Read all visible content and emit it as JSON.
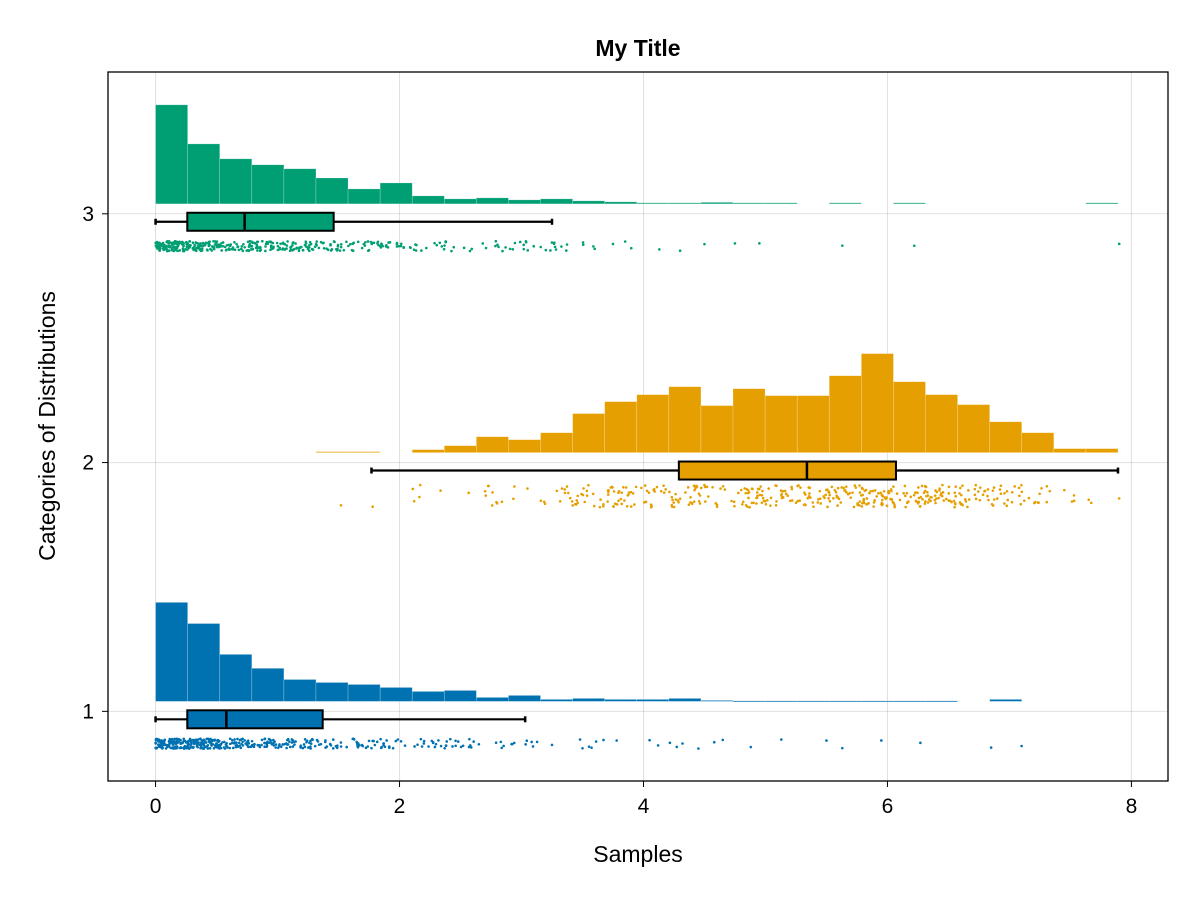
{
  "chart_data": {
    "type": "raincloud",
    "title": "My Title",
    "xlabel": "Samples",
    "ylabel": "Categories of Distributions",
    "xlim": [
      -0.39,
      8.3
    ],
    "ylim": [
      0.72,
      3.57
    ],
    "xticks": [
      0,
      2,
      4,
      6,
      8
    ],
    "xtick_labels": [
      "0",
      "2",
      "4",
      "6",
      "8"
    ],
    "yticks": [
      1,
      2,
      3
    ],
    "ytick_labels": [
      "1",
      "2",
      "3"
    ],
    "grid": true,
    "bin_width": 0.263,
    "series": [
      {
        "name": "1",
        "category": 1,
        "color": "#0072b2",
        "hist_baseline": 1.04,
        "hist_heights": [
          0.398,
          0.313,
          0.189,
          0.133,
          0.088,
          0.076,
          0.068,
          0.056,
          0.04,
          0.044,
          0.016,
          0.024,
          0.008,
          0.012,
          0.008,
          0.008,
          0.012,
          0.004,
          0.002,
          0.002,
          0.002,
          0.002,
          0.002,
          0.002,
          0.002,
          0,
          0.008,
          0,
          0,
          0
        ],
        "box": {
          "whisker_low": 0.0,
          "q1": 0.26,
          "median": 0.58,
          "q3": 1.37,
          "whisker_high": 3.03
        },
        "box_center": 0.968,
        "scatter_band": [
          0.85,
          0.89
        ],
        "outliers": [
          3.25,
          3.5,
          3.78,
          4.05,
          4.12,
          4.32,
          4.45,
          4.58,
          4.65,
          4.88,
          5.13,
          5.5,
          5.63,
          5.95,
          6.27,
          6.85,
          7.1
        ]
      },
      {
        "name": "2",
        "category": 2,
        "color": "#e69f00",
        "hist_baseline": 2.04,
        "hist_heights": [
          0,
          0,
          0,
          0,
          0,
          0.004,
          0.004,
          0,
          0.012,
          0.028,
          0.064,
          0.052,
          0.08,
          0.157,
          0.205,
          0.233,
          0.265,
          0.189,
          0.257,
          0.229,
          0.229,
          0.309,
          0.398,
          0.285,
          0.233,
          0.193,
          0.124,
          0.08,
          0.016,
          0.016
        ],
        "box": {
          "whisker_low": 1.77,
          "q1": 4.29,
          "median": 5.34,
          "q3": 6.07,
          "whisker_high": 7.89
        },
        "box_center": 1.968,
        "scatter_band": [
          1.82,
          1.91
        ],
        "outliers": [
          1.52,
          1.78,
          2.17,
          7.45,
          7.65,
          7.9
        ]
      },
      {
        "name": "3",
        "category": 3,
        "color": "#009e73",
        "hist_baseline": 3.04,
        "hist_heights": [
          0.398,
          0.241,
          0.181,
          0.157,
          0.141,
          0.104,
          0.06,
          0.084,
          0.032,
          0.02,
          0.024,
          0.016,
          0.02,
          0.012,
          0.008,
          0.004,
          0.004,
          0.006,
          0.004,
          0.004,
          0,
          0.004,
          0,
          0.004,
          0,
          0,
          0,
          0,
          0,
          0.004
        ],
        "box": {
          "whisker_low": 0.0,
          "q1": 0.26,
          "median": 0.73,
          "q3": 1.46,
          "whisker_high": 3.25
        },
        "box_center": 2.968,
        "scatter_band": [
          2.85,
          2.89
        ],
        "outliers": [
          3.6,
          3.75,
          3.85,
          3.9,
          4.13,
          4.3,
          4.5,
          4.75,
          4.95,
          5.63,
          6.22,
          7.9
        ]
      }
    ]
  }
}
